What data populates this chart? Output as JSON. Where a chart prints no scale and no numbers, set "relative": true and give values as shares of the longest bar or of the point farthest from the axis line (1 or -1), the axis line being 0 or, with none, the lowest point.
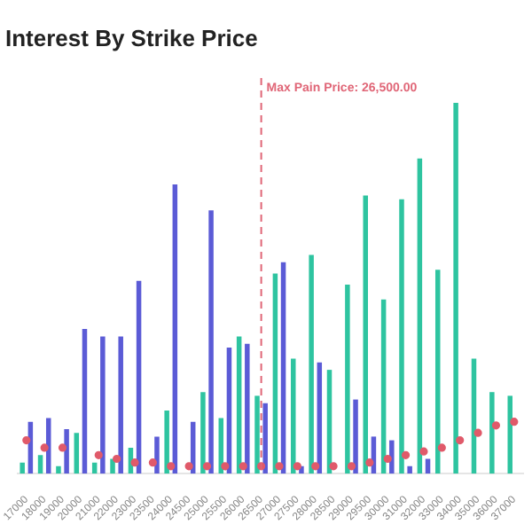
{
  "chart_data": {
    "type": "bar",
    "title": "Interest By Strike Price",
    "relative": true,
    "grid": false,
    "legend": false,
    "categories": [
      "17000",
      "18000",
      "19000",
      "20000",
      "21000",
      "22000",
      "23000",
      "23500",
      "24000",
      "24500",
      "25000",
      "25500",
      "26000",
      "26500",
      "27000",
      "27500",
      "28000",
      "28500",
      "29000",
      "29500",
      "30000",
      "31000",
      "32000",
      "33000",
      "34000",
      "35000",
      "36000",
      "37000"
    ],
    "series": [
      {
        "color": "#2ec4a0",
        "values": [
          0.03,
          0.05,
          0.02,
          0.11,
          0.03,
          0.04,
          0.07,
          null,
          0.17,
          null,
          0.22,
          0.15,
          0.37,
          0.21,
          0.54,
          0.31,
          0.59,
          0.28,
          0.51,
          0.75,
          0.47,
          0.74,
          0.85,
          0.55,
          1,
          0.31,
          0.22,
          0.21
        ]
      },
      {
        "color": "#5b5bd6",
        "values": [
          0.14,
          0.15,
          0.12,
          0.39,
          0.37,
          0.37,
          0.52,
          0.1,
          0.78,
          0.14,
          0.71,
          0.34,
          0.35,
          0.19,
          0.57,
          0.02,
          0.3,
          null,
          0.2,
          0.1,
          0.09,
          0.02,
          0.04,
          null,
          null,
          null,
          null,
          null
        ]
      },
      {
        "type": "scatter",
        "color": "#e05a6a",
        "marker": "circle",
        "values": [
          0.09,
          0.07,
          0.07,
          null,
          0.05,
          0.04,
          0.03,
          0.03,
          0.02,
          0.02,
          0.02,
          0.02,
          0.02,
          0.02,
          0.02,
          0.02,
          0.02,
          0.02,
          0.02,
          0.03,
          0.04,
          0.05,
          0.06,
          0.07,
          0.09,
          0.11,
          0.13,
          0.14
        ]
      }
    ],
    "ref_lines": [
      {
        "axis": "x",
        "value": "26500",
        "label": "Max Pain Price: 26,500.00",
        "color": "#e06677",
        "line_style": "dashed"
      }
    ]
  }
}
